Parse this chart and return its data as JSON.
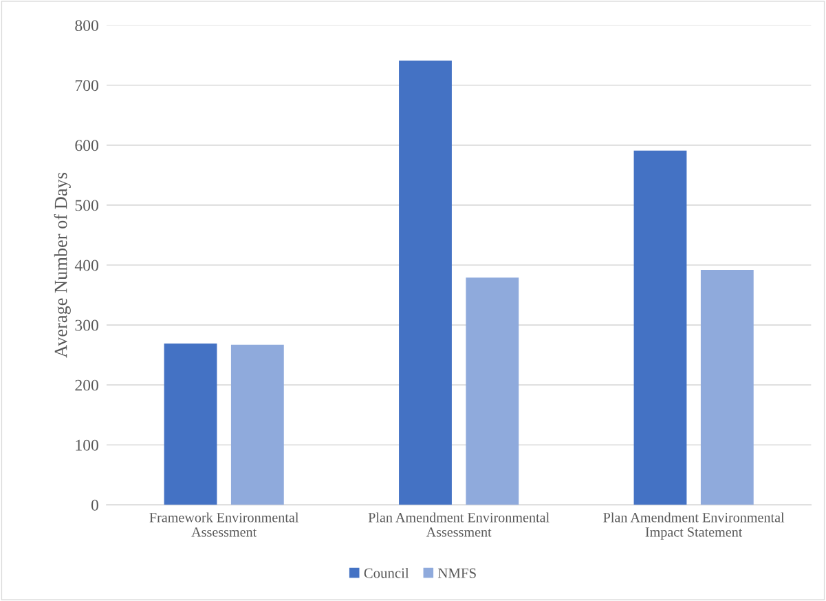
{
  "chart_data": {
    "type": "bar",
    "ylabel": "Average Number of Days",
    "categories": [
      "Framework Environmental\nAssessment",
      "Plan Amendment Environmental\nAssessment",
      "Plan Amendment Environmental\nImpact Statement"
    ],
    "series": [
      {
        "name": "Council",
        "color": "#4472c4",
        "values": [
          269,
          741,
          591
        ]
      },
      {
        "name": "NMFS",
        "color": "#8faadc",
        "values": [
          267,
          379,
          392
        ]
      }
    ],
    "ylim": [
      0,
      800
    ],
    "yticks": [
      0,
      100,
      200,
      300,
      400,
      500,
      600,
      700,
      800
    ],
    "grid": "y",
    "legend": "bottom"
  }
}
